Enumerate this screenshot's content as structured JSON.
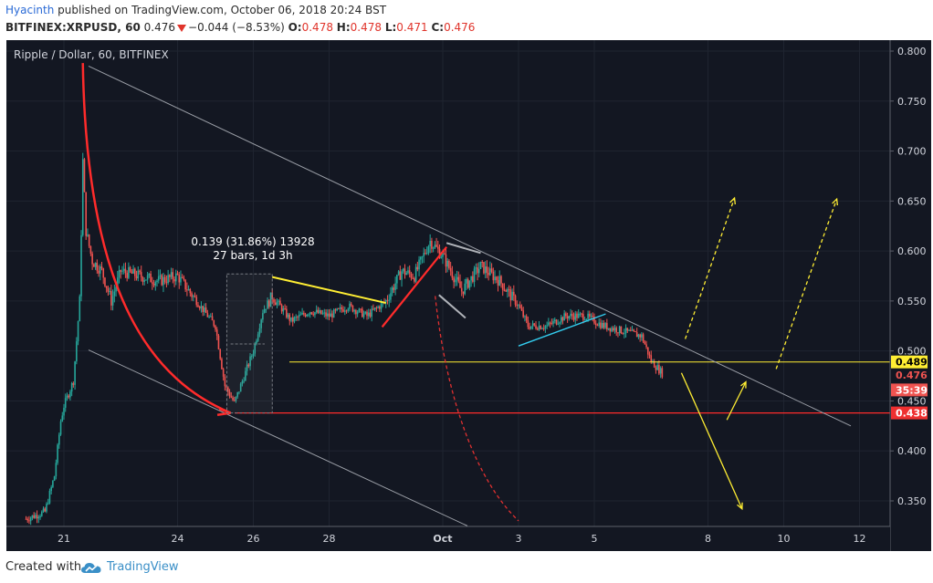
{
  "header": {
    "user": "Hyacinth",
    "published_text": "published on TradingView.com, October 06, 2018 20:24 BST",
    "symbol_line": "BITFINEX:XRPUSD, 60",
    "last": "0.476",
    "change": "−0.044 (−8.53%)",
    "o_label": "O:",
    "o_val": "0.478",
    "h_label": "H:",
    "h_val": "0.478",
    "l_label": "L:",
    "l_val": "0.471",
    "c_label": "C:",
    "c_val": "0.476"
  },
  "footer": {
    "created_with": "Created with",
    "brand": "TradingView"
  },
  "colors": {
    "background": "#131722",
    "up": "#26a69a",
    "down": "#ef5350",
    "yellow": "#ffee33",
    "red_line": "#ff2b2b",
    "cyan": "#33ccee",
    "grey": "#9a9ea6"
  },
  "chart_data": {
    "type": "candlestick",
    "title": "Ripple / Dollar, 60, BITFINEX",
    "y_ticks": [
      "0.800",
      "0.750",
      "0.700",
      "0.650",
      "0.600",
      "0.550",
      "0.500",
      "0.450",
      "0.400",
      "0.350"
    ],
    "ylim": [
      0.325,
      0.805
    ],
    "x_ticks": [
      "21",
      "24",
      "26",
      "28",
      "Oct",
      "3",
      "5",
      "8",
      "10",
      "12"
    ],
    "price_labels": [
      {
        "text": "0.489",
        "value": 0.489,
        "bg": "#ffee33",
        "fg": "#000000"
      },
      {
        "text": "0.476",
        "value": 0.476,
        "bg": "#131722",
        "fg": "#ef5350"
      },
      {
        "text": "35:39",
        "value": 0.461,
        "bg": "#ef5350",
        "fg": "#ffffff"
      },
      {
        "text": "0.438",
        "value": 0.438,
        "bg": "#ef3030",
        "fg": "#ffffff"
      }
    ],
    "measure": {
      "line1": "0.139 (31.86%) 13928",
      "line2": "27 bars, 1d 3h"
    },
    "horizontal_levels": [
      {
        "value": 0.489,
        "color": "#ffee33"
      },
      {
        "value": 0.438,
        "color": "#ff2b2b"
      }
    ],
    "price_path": [
      [
        "Sep 20 00:00",
        0.332
      ],
      [
        "Sep 20 12:00",
        0.339
      ],
      [
        "Sep 20 18:00",
        0.375
      ],
      [
        "Sep 20 22:00",
        0.43
      ],
      [
        "Sep 21 00:00",
        0.445
      ],
      [
        "Sep 21 06:00",
        0.47
      ],
      [
        "Sep 21 10:00",
        0.55
      ],
      [
        "Sep 21 12:00",
        0.69
      ],
      [
        "Sep 21 14:00",
        0.62
      ],
      [
        "Sep 21 18:00",
        0.59
      ],
      [
        "Sep 22 00:00",
        0.58
      ],
      [
        "Sep 22 06:00",
        0.55
      ],
      [
        "Sep 22 12:00",
        0.58
      ],
      [
        "Sep 23 00:00",
        0.575
      ],
      [
        "Sep 23 12:00",
        0.57
      ],
      [
        "Sep 24 00:00",
        0.575
      ],
      [
        "Sep 24 12:00",
        0.55
      ],
      [
        "Sep 25 00:00",
        0.525
      ],
      [
        "Sep 25 06:00",
        0.465
      ],
      [
        "Sep 25 12:00",
        0.448
      ],
      [
        "Sep 26 00:00",
        0.5
      ],
      [
        "Sep 26 06:00",
        0.54
      ],
      [
        "Sep 26 12:00",
        0.555
      ],
      [
        "Sep 27 00:00",
        0.53
      ],
      [
        "Sep 27 12:00",
        0.54
      ],
      [
        "Sep 28 00:00",
        0.535
      ],
      [
        "Sep 28 12:00",
        0.545
      ],
      [
        "Sep 29 00:00",
        0.535
      ],
      [
        "Sep 29 12:00",
        0.55
      ],
      [
        "Sep 29 22:00",
        0.58
      ],
      [
        "Sep 30 06:00",
        0.575
      ],
      [
        "Sep 30 16:00",
        0.61
      ],
      [
        "Oct 1 00:00",
        0.595
      ],
      [
        "Oct 1 12:00",
        0.56
      ],
      [
        "Oct 2 00:00",
        0.585
      ],
      [
        "Oct 2 12:00",
        0.57
      ],
      [
        "Oct 3 00:00",
        0.545
      ],
      [
        "Oct 3 06:00",
        0.525
      ],
      [
        "Oct 3 18:00",
        0.525
      ],
      [
        "Oct 4 06:00",
        0.535
      ],
      [
        "Oct 4 18:00",
        0.535
      ],
      [
        "Oct 5 06:00",
        0.525
      ],
      [
        "Oct 5 18:00",
        0.52
      ],
      [
        "Oct 6 06:00",
        0.515
      ],
      [
        "Oct 6 12:00",
        0.49
      ],
      [
        "Oct 6 20:00",
        0.476
      ]
    ]
  }
}
